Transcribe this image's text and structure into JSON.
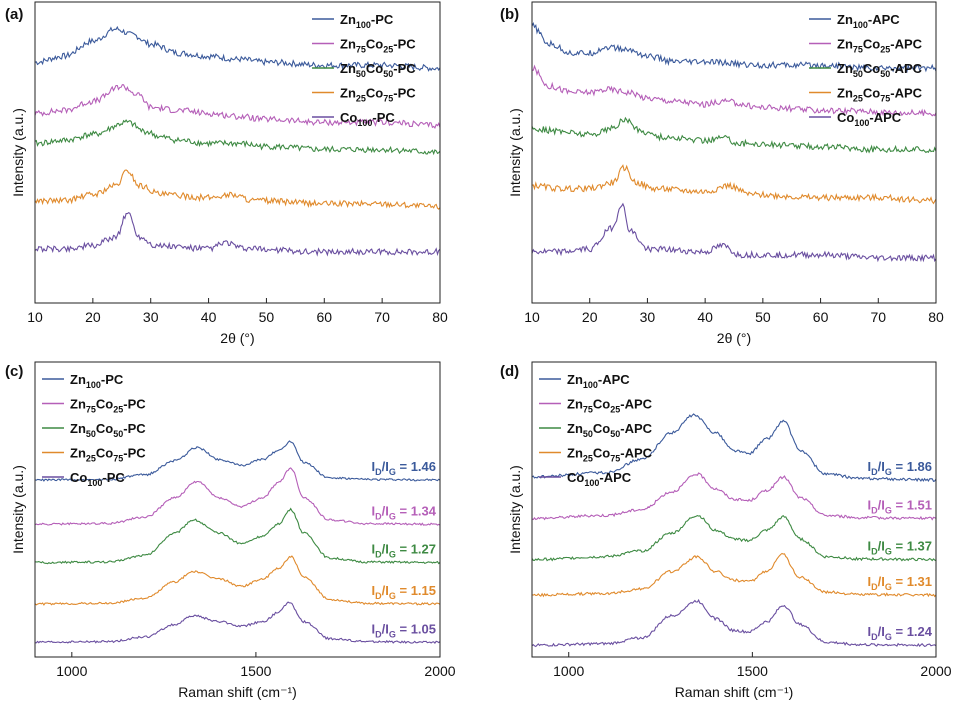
{
  "colors": {
    "Zn100": "#3b5a9b",
    "Zn75Co25": "#b55fb8",
    "Zn50Co50": "#3e8a43",
    "Zn25Co75": "#e08a2c",
    "Co100": "#6a4fa0"
  },
  "chart_data": [
    {
      "panel": "(a)",
      "type": "line",
      "xlabel": "2θ (°)",
      "ylabel": "Intensity (a.u.)",
      "xlim": [
        10,
        80
      ],
      "xticks": [
        10,
        20,
        30,
        40,
        50,
        60,
        70,
        80
      ],
      "legend_position": "top-right",
      "series": [
        {
          "key": "Zn100",
          "name": [
            "Zn",
            "100",
            "-PC"
          ],
          "x": [
            10,
            15,
            20,
            24,
            27,
            30,
            35,
            40,
            45,
            50,
            60,
            70,
            80
          ],
          "y": [
            0.8,
            0.82,
            0.87,
            0.91,
            0.89,
            0.86,
            0.83,
            0.82,
            0.81,
            0.8,
            0.79,
            0.79,
            0.78
          ]
        },
        {
          "key": "Zn75Co25",
          "name": [
            "Zn",
            "75",
            "Co",
            "25",
            "-PC"
          ],
          "x": [
            10,
            15,
            20,
            25,
            28,
            30,
            35,
            40,
            45,
            50,
            60,
            70,
            80
          ],
          "y": [
            0.63,
            0.64,
            0.67,
            0.72,
            0.69,
            0.65,
            0.64,
            0.63,
            0.62,
            0.61,
            0.6,
            0.6,
            0.59
          ]
        },
        {
          "key": "Zn50Co50",
          "name": [
            "Zn",
            "50",
            "Co",
            "50",
            "-PC"
          ],
          "x": [
            10,
            15,
            20,
            26,
            29,
            32,
            35,
            40,
            45,
            50,
            60,
            70,
            80
          ],
          "y": [
            0.53,
            0.54,
            0.56,
            0.6,
            0.57,
            0.55,
            0.54,
            0.53,
            0.53,
            0.52,
            0.51,
            0.51,
            0.5
          ]
        },
        {
          "key": "Zn25Co75",
          "name": [
            "Zn",
            "25",
            "Co",
            "75",
            "-PC"
          ],
          "x": [
            10,
            15,
            20,
            24,
            26,
            28,
            32,
            40,
            44,
            48,
            60,
            70,
            80
          ],
          "y": [
            0.34,
            0.34,
            0.36,
            0.39,
            0.44,
            0.39,
            0.36,
            0.35,
            0.36,
            0.34,
            0.33,
            0.33,
            0.32
          ]
        },
        {
          "key": "Co100",
          "name": [
            "Co",
            "100",
            "-PC"
          ],
          "x": [
            10,
            15,
            20,
            24,
            26,
            28,
            31,
            40,
            43,
            46,
            60,
            70,
            80
          ],
          "y": [
            0.18,
            0.18,
            0.19,
            0.22,
            0.3,
            0.22,
            0.19,
            0.18,
            0.2,
            0.18,
            0.17,
            0.17,
            0.17
          ]
        }
      ]
    },
    {
      "panel": "(b)",
      "type": "line",
      "xlabel": "2θ (°)",
      "ylabel": "Intensity (a.u.)",
      "xlim": [
        10,
        80
      ],
      "xticks": [
        10,
        20,
        30,
        40,
        50,
        60,
        70,
        80
      ],
      "legend_position": "top-right",
      "series": [
        {
          "key": "Zn100",
          "name": [
            "Zn",
            "100",
            "-APC"
          ],
          "x": [
            10,
            13,
            17,
            20,
            23,
            27,
            30,
            35,
            40,
            50,
            60,
            70,
            80
          ],
          "y": [
            0.92,
            0.86,
            0.83,
            0.83,
            0.85,
            0.84,
            0.82,
            0.8,
            0.8,
            0.79,
            0.79,
            0.78,
            0.78
          ]
        },
        {
          "key": "Zn75Co25",
          "name": [
            "Zn",
            "75",
            "Co",
            "25",
            "-APC"
          ],
          "x": [
            10,
            13,
            17,
            20,
            23,
            27,
            30,
            35,
            40,
            43,
            50,
            60,
            80
          ],
          "y": [
            0.78,
            0.72,
            0.7,
            0.7,
            0.71,
            0.7,
            0.68,
            0.67,
            0.66,
            0.67,
            0.65,
            0.64,
            0.63
          ]
        },
        {
          "key": "Zn50Co50",
          "name": [
            "Zn",
            "50",
            "Co",
            "50",
            "-APC"
          ],
          "x": [
            10,
            15,
            20,
            24,
            26,
            29,
            33,
            40,
            43,
            46,
            60,
            70,
            80
          ],
          "y": [
            0.58,
            0.57,
            0.56,
            0.58,
            0.61,
            0.57,
            0.55,
            0.54,
            0.55,
            0.53,
            0.52,
            0.51,
            0.51
          ]
        },
        {
          "key": "Zn25Co75",
          "name": [
            "Zn",
            "25",
            "Co",
            "75",
            "-APC"
          ],
          "x": [
            10,
            15,
            20,
            24,
            26,
            28,
            31,
            40,
            44,
            48,
            60,
            70,
            80
          ],
          "y": [
            0.39,
            0.38,
            0.38,
            0.4,
            0.45,
            0.4,
            0.38,
            0.37,
            0.39,
            0.36,
            0.35,
            0.35,
            0.34
          ]
        },
        {
          "key": "Co100",
          "name": [
            "Co",
            "100",
            "-APC"
          ],
          "x": [
            10,
            15,
            20,
            24,
            25.5,
            27,
            30,
            40,
            43,
            46,
            60,
            70,
            80
          ],
          "y": [
            0.17,
            0.17,
            0.18,
            0.25,
            0.33,
            0.24,
            0.18,
            0.17,
            0.19,
            0.16,
            0.16,
            0.15,
            0.15
          ]
        }
      ]
    },
    {
      "panel": "(c)",
      "type": "line",
      "xlabel": "Raman shift (cm⁻¹)",
      "ylabel": "Intensity (a.u.)",
      "xlim": [
        900,
        2000
      ],
      "xticks": [
        1000,
        1500,
        2000
      ],
      "legend_position": "top-left",
      "series": [
        {
          "key": "Zn100",
          "name": [
            "Zn",
            "100",
            "-PC"
          ],
          "ratio": "1.46",
          "x": [
            900,
            1100,
            1200,
            1280,
            1340,
            1400,
            1460,
            1520,
            1560,
            1595,
            1630,
            1700,
            1800,
            2000
          ],
          "y": [
            0.6,
            0.602,
            0.618,
            0.665,
            0.71,
            0.67,
            0.65,
            0.67,
            0.7,
            0.73,
            0.66,
            0.607,
            0.602,
            0.6
          ]
        },
        {
          "key": "Zn75Co25",
          "name": [
            "Zn",
            "75",
            "Co",
            "25",
            "-PC"
          ],
          "ratio": "1.34",
          "x": [
            900,
            1100,
            1200,
            1280,
            1340,
            1400,
            1460,
            1520,
            1560,
            1595,
            1630,
            1700,
            1800,
            2000
          ],
          "y": [
            0.45,
            0.453,
            0.475,
            0.54,
            0.595,
            0.54,
            0.51,
            0.54,
            0.59,
            0.64,
            0.54,
            0.465,
            0.452,
            0.45
          ]
        },
        {
          "key": "Zn50Co50",
          "name": [
            "Zn",
            "50",
            "Co",
            "50",
            "-PC"
          ],
          "ratio": "1.27",
          "x": [
            900,
            1100,
            1200,
            1280,
            1330,
            1400,
            1460,
            1520,
            1560,
            1595,
            1630,
            1700,
            1800,
            2000
          ],
          "y": [
            0.32,
            0.322,
            0.345,
            0.42,
            0.465,
            0.42,
            0.385,
            0.41,
            0.45,
            0.5,
            0.42,
            0.335,
            0.322,
            0.32
          ]
        },
        {
          "key": "Zn25Co75",
          "name": [
            "Zn",
            "25",
            "Co",
            "75",
            "-PC"
          ],
          "ratio": "1.15",
          "x": [
            900,
            1100,
            1200,
            1280,
            1330,
            1400,
            1460,
            1520,
            1560,
            1595,
            1630,
            1700,
            1800,
            2000
          ],
          "y": [
            0.18,
            0.182,
            0.2,
            0.255,
            0.29,
            0.265,
            0.24,
            0.265,
            0.3,
            0.34,
            0.27,
            0.195,
            0.182,
            0.18
          ]
        },
        {
          "key": "Co100",
          "name": [
            "Co",
            "100",
            "-PC"
          ],
          "ratio": "1.05",
          "x": [
            900,
            1100,
            1200,
            1280,
            1330,
            1400,
            1460,
            1520,
            1560,
            1590,
            1630,
            1700,
            1800,
            2000
          ],
          "y": [
            0.05,
            0.052,
            0.068,
            0.11,
            0.14,
            0.12,
            0.105,
            0.12,
            0.15,
            0.185,
            0.12,
            0.062,
            0.052,
            0.05
          ]
        }
      ]
    },
    {
      "panel": "(d)",
      "type": "line",
      "xlabel": "Raman shift (cm⁻¹)",
      "ylabel": "Intensity (a.u.)",
      "xlim": [
        900,
        2000
      ],
      "xticks": [
        1000,
        1500,
        2000
      ],
      "legend_position": "top-left",
      "series": [
        {
          "key": "Zn100",
          "name": [
            "Zn",
            "100",
            "-APC"
          ],
          "ratio": "1.86",
          "x": [
            900,
            1100,
            1200,
            1280,
            1340,
            1400,
            1450,
            1490,
            1540,
            1585,
            1630,
            1700,
            1800,
            2000
          ],
          "y": [
            0.61,
            0.625,
            0.67,
            0.76,
            0.82,
            0.76,
            0.7,
            0.69,
            0.74,
            0.8,
            0.7,
            0.62,
            0.605,
            0.6
          ]
        },
        {
          "key": "Zn75Co25",
          "name": [
            "Zn",
            "75",
            "Co",
            "25",
            "-APC"
          ],
          "ratio": "1.51",
          "x": [
            900,
            1100,
            1200,
            1280,
            1350,
            1400,
            1450,
            1490,
            1540,
            1585,
            1630,
            1700,
            1800,
            2000
          ],
          "y": [
            0.47,
            0.48,
            0.5,
            0.56,
            0.62,
            0.57,
            0.535,
            0.53,
            0.565,
            0.61,
            0.54,
            0.48,
            0.472,
            0.47
          ]
        },
        {
          "key": "Zn50Co50",
          "name": [
            "Zn",
            "50",
            "Co",
            "50",
            "-APC"
          ],
          "ratio": "1.37",
          "x": [
            900,
            1100,
            1200,
            1280,
            1350,
            1400,
            1450,
            1490,
            1540,
            1585,
            1630,
            1700,
            1800,
            2000
          ],
          "y": [
            0.33,
            0.34,
            0.36,
            0.42,
            0.48,
            0.43,
            0.4,
            0.395,
            0.43,
            0.475,
            0.4,
            0.34,
            0.332,
            0.33
          ]
        },
        {
          "key": "Zn25Co75",
          "name": [
            "Zn",
            "25",
            "Co",
            "75",
            "-APC"
          ],
          "ratio": "1.31",
          "x": [
            900,
            1100,
            1200,
            1280,
            1350,
            1400,
            1450,
            1490,
            1540,
            1580,
            1630,
            1700,
            1800,
            2000
          ],
          "y": [
            0.21,
            0.215,
            0.23,
            0.29,
            0.34,
            0.29,
            0.26,
            0.255,
            0.29,
            0.35,
            0.27,
            0.22,
            0.212,
            0.21
          ]
        },
        {
          "key": "Co100",
          "name": [
            "Co",
            "100",
            "-APC"
          ],
          "ratio": "1.24",
          "x": [
            900,
            1100,
            1200,
            1280,
            1350,
            1400,
            1450,
            1490,
            1540,
            1585,
            1630,
            1700,
            1800,
            2000
          ],
          "y": [
            0.04,
            0.045,
            0.065,
            0.14,
            0.19,
            0.13,
            0.09,
            0.085,
            0.12,
            0.175,
            0.11,
            0.05,
            0.042,
            0.04
          ]
        }
      ]
    }
  ]
}
